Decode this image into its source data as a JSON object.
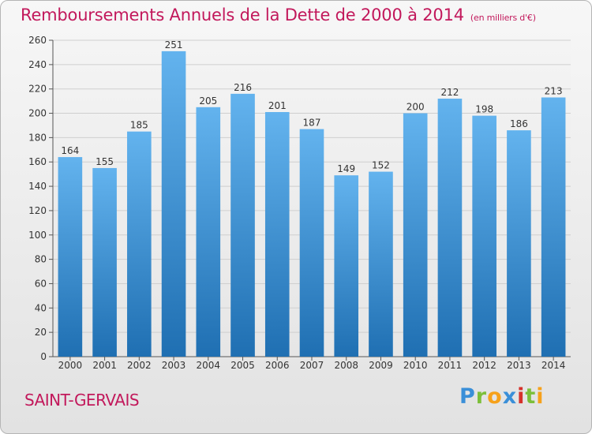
{
  "header": {
    "title": "Remboursements Annuels de la Dette de 2000 à 2014",
    "unit": "(en milliers d'€)"
  },
  "commune": "SAINT-GERVAIS",
  "logo": {
    "text": "Proxiti"
  },
  "colors": {
    "title": "#c2185b",
    "bar_top": "#63b3ee",
    "bar_bottom": "#1f6fb2",
    "background": "#eeeeee"
  },
  "chart_data": {
    "type": "bar",
    "title": "Remboursements Annuels de la Dette de 2000 à 2014",
    "subtitle": "(en milliers d'€)",
    "xlabel": "",
    "ylabel": "",
    "categories": [
      "2000",
      "2001",
      "2002",
      "2003",
      "2004",
      "2005",
      "2006",
      "2007",
      "2008",
      "2009",
      "2010",
      "2011",
      "2012",
      "2013",
      "2014"
    ],
    "values": [
      164,
      155,
      185,
      251,
      205,
      216,
      201,
      187,
      149,
      152,
      200,
      212,
      198,
      186,
      213
    ],
    "ylim": [
      0,
      260
    ],
    "yticks": [
      0,
      20,
      40,
      60,
      80,
      100,
      120,
      140,
      160,
      180,
      200,
      220,
      240,
      260
    ],
    "grid": true,
    "legend": "none"
  }
}
